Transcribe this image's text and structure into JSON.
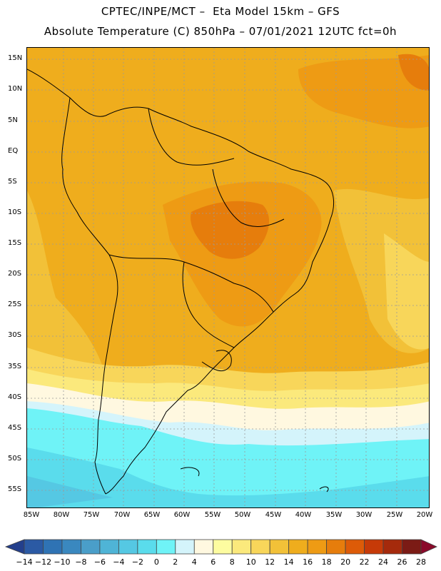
{
  "title": {
    "line1": "CPTEC/INPE/MCT –  Eta Model 15km – GFS",
    "line2": "Absolute Temperature (C) 850hPa – 07/01/2021 12UTC fct=0h"
  },
  "lat_labels": [
    "15N",
    "10N",
    "5N",
    "EQ",
    "5S",
    "10S",
    "15S",
    "20S",
    "25S",
    "30S",
    "35S",
    "40S",
    "45S",
    "50S",
    "55S"
  ],
  "lon_labels": [
    "85W",
    "80W",
    "75W",
    "70W",
    "65W",
    "60W",
    "55W",
    "50W",
    "45W",
    "40W",
    "35W",
    "30W",
    "25W",
    "20W"
  ],
  "colorbar": {
    "labels": [
      "-14",
      "-12",
      "-10",
      "-8",
      "-6",
      "-4",
      "-2",
      "0",
      "2",
      "4",
      "6",
      "8",
      "10",
      "12",
      "14",
      "16",
      "18",
      "20",
      "22",
      "24",
      "26",
      "28"
    ],
    "colors": [
      "#233f8c",
      "#2b5aa4",
      "#2f73b4",
      "#3a88bf",
      "#4a9ec9",
      "#4fb4d6",
      "#55c8e3",
      "#5adcec",
      "#6ff3f7",
      "#d4f4fb",
      "#fff8e0",
      "#fdfca0",
      "#fbe97c",
      "#f8d65a",
      "#f2c138",
      "#efad1d",
      "#ee9b14",
      "#e67d0c",
      "#dd5b08",
      "#c63a08",
      "#a52a0c",
      "#7b1b15",
      "#8a0a2a"
    ]
  },
  "field_colors": {
    "warm_base": "#efad1d",
    "warm_light": "#f2c138",
    "hot": "#ee9b14",
    "hotter": "#e67d0c",
    "mild": "#f8d65a",
    "pale": "#fbe97c",
    "cream": "#fff8e0",
    "ice": "#d4f4fb",
    "cyan": "#6ff3f7",
    "cyan2": "#5adcec",
    "blue": "#55c8e3"
  }
}
